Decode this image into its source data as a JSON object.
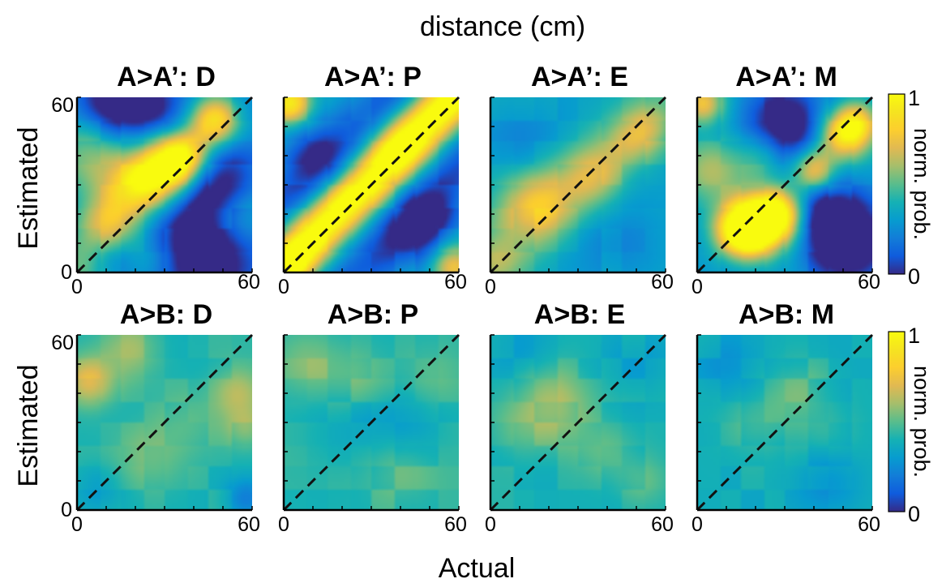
{
  "figure": {
    "top_label": "distance (cm)",
    "x_label": "Actual",
    "y_label": "Estimated"
  },
  "chart_data": [
    {
      "type": "heatmap",
      "title": "A>A’: D",
      "row": 0,
      "x_ticks": [
        "0",
        "60"
      ],
      "y_ticks": [
        "0",
        "60"
      ],
      "xlim": [
        0,
        60
      ],
      "ylim": [
        0,
        60
      ],
      "diagonal": "dashed",
      "seed": 11,
      "blobs": [
        [
          2,
          2,
          0.3,
          8
        ],
        [
          10,
          16,
          0.4,
          7
        ],
        [
          20,
          28,
          0.5,
          8
        ],
        [
          30,
          36,
          0.72,
          8
        ],
        [
          37,
          40,
          0.5,
          6
        ],
        [
          47,
          52,
          0.62,
          6
        ],
        [
          5,
          40,
          0.32,
          10
        ],
        [
          55,
          20,
          0.3,
          8
        ],
        [
          25,
          5,
          0.3,
          8
        ]
      ],
      "lows": [
        [
          40,
          8,
          0.5,
          14
        ],
        [
          50,
          30,
          0.35,
          9
        ],
        [
          25,
          55,
          0.35,
          10
        ],
        [
          10,
          58,
          0.3,
          8
        ],
        [
          12,
          5,
          0.2,
          6
        ]
      ],
      "base": 0.26
    },
    {
      "type": "heatmap",
      "title": "A>A’: P",
      "row": 0,
      "x_ticks": [
        "0",
        "60"
      ],
      "y_ticks": [
        "0",
        "60"
      ],
      "xlim": [
        0,
        60
      ],
      "ylim": [
        0,
        60
      ],
      "diagonal": "dashed",
      "seed": 23,
      "ridge": {
        "offset": 2,
        "width": 6,
        "amp": 0.75
      },
      "bands": {
        "offset": 25,
        "width": 7,
        "amp": -0.25
      },
      "blobs": [
        [
          2,
          58,
          0.55,
          5
        ],
        [
          58,
          2,
          0.45,
          5
        ],
        [
          40,
          44,
          0.15,
          6
        ],
        [
          5,
          5,
          0.15,
          5
        ]
      ],
      "lows": [
        [
          10,
          40,
          0.2,
          8
        ],
        [
          45,
          12,
          0.2,
          8
        ],
        [
          50,
          20,
          0.2,
          7
        ]
      ],
      "base": 0.36
    },
    {
      "type": "heatmap",
      "title": "A>A’: E",
      "row": 0,
      "x_ticks": [
        "0",
        "60"
      ],
      "y_ticks": [
        "0",
        "60"
      ],
      "xlim": [
        0,
        60
      ],
      "ylim": [
        0,
        60
      ],
      "diagonal": "dashed",
      "seed": 37,
      "ridge": {
        "offset": 0,
        "width": 8,
        "amp": 0.12
      },
      "blobs": [
        [
          12,
          22,
          0.25,
          8
        ],
        [
          20,
          26,
          0.2,
          8
        ],
        [
          35,
          33,
          0.26,
          7
        ],
        [
          48,
          45,
          0.22,
          6
        ],
        [
          55,
          50,
          0.18,
          5
        ],
        [
          2,
          5,
          0.15,
          6
        ]
      ],
      "lows": [
        [
          10,
          45,
          0.1,
          10
        ],
        [
          45,
          10,
          0.1,
          10
        ]
      ],
      "base": 0.34
    },
    {
      "type": "heatmap",
      "title": "A>A’: M",
      "row": 0,
      "x_ticks": [
        "0",
        "60"
      ],
      "y_ticks": [
        "0",
        "60"
      ],
      "xlim": [
        0,
        60
      ],
      "ylim": [
        0,
        60
      ],
      "diagonal": "dashed",
      "seed": 41,
      "blobs": [
        [
          20,
          16,
          0.9,
          7
        ],
        [
          14,
          14,
          0.5,
          6
        ],
        [
          28,
          20,
          0.6,
          6
        ],
        [
          40,
          35,
          0.5,
          5
        ],
        [
          50,
          47,
          0.6,
          6
        ],
        [
          55,
          52,
          0.4,
          5
        ],
        [
          2,
          58,
          0.5,
          5
        ],
        [
          5,
          35,
          0.3,
          8
        ],
        [
          22,
          40,
          0.25,
          6
        ]
      ],
      "lows": [
        [
          30,
          50,
          0.45,
          10
        ],
        [
          52,
          10,
          0.45,
          10
        ],
        [
          45,
          20,
          0.3,
          8
        ]
      ],
      "base": 0.3
    },
    {
      "type": "heatmap",
      "title": "A>B: D",
      "row": 1,
      "x_ticks": [
        "0",
        "60"
      ],
      "y_ticks": [
        "0",
        "60"
      ],
      "xlim": [
        0,
        60
      ],
      "ylim": [
        0,
        60
      ],
      "diagonal": "dashed",
      "seed": 53,
      "blobs": [
        [
          4,
          44,
          0.3,
          6
        ],
        [
          18,
          55,
          0.15,
          7
        ],
        [
          55,
          40,
          0.18,
          6
        ],
        [
          58,
          28,
          0.15,
          5
        ],
        [
          25,
          18,
          0.1,
          8
        ],
        [
          38,
          30,
          0.08,
          8
        ]
      ],
      "lows": [
        [
          58,
          4,
          0.2,
          5
        ],
        [
          8,
          8,
          0.1,
          6
        ]
      ],
      "base": 0.42
    },
    {
      "type": "heatmap",
      "title": "A>B: P",
      "row": 1,
      "x_ticks": [
        "0",
        "60"
      ],
      "y_ticks": [
        "0",
        "60"
      ],
      "xlim": [
        0,
        60
      ],
      "ylim": [
        0,
        60
      ],
      "diagonal": "dashed",
      "seed": 67,
      "blobs": [
        [
          8,
          50,
          0.12,
          8
        ],
        [
          25,
          45,
          0.1,
          8
        ],
        [
          50,
          45,
          0.08,
          8
        ],
        [
          40,
          15,
          0.1,
          8
        ]
      ],
      "lows": [
        [
          40,
          30,
          0.12,
          10
        ],
        [
          20,
          28,
          0.06,
          10
        ]
      ],
      "base": 0.43
    },
    {
      "type": "heatmap",
      "title": "A>B: E",
      "row": 1,
      "x_ticks": [
        "0",
        "60"
      ],
      "y_ticks": [
        "0",
        "60"
      ],
      "xlim": [
        0,
        60
      ],
      "ylim": [
        0,
        60
      ],
      "diagonal": "dashed",
      "seed": 79,
      "blobs": [
        [
          20,
          40,
          0.15,
          8
        ],
        [
          25,
          30,
          0.1,
          8
        ],
        [
          10,
          28,
          0.1,
          7
        ],
        [
          40,
          20,
          0.1,
          7
        ],
        [
          52,
          10,
          0.1,
          6
        ]
      ],
      "lows": [
        [
          10,
          55,
          0.08,
          8
        ],
        [
          50,
          50,
          0.08,
          8
        ]
      ],
      "base": 0.4
    },
    {
      "type": "heatmap",
      "title": "A>B: M",
      "row": 1,
      "x_ticks": [
        "0",
        "60"
      ],
      "y_ticks": [
        "0",
        "60"
      ],
      "xlim": [
        0,
        60
      ],
      "ylim": [
        0,
        60
      ],
      "diagonal": "dashed",
      "seed": 83,
      "blobs": [
        [
          20,
          30,
          0.1,
          8
        ],
        [
          35,
          40,
          0.12,
          8
        ],
        [
          45,
          25,
          0.08,
          7
        ]
      ],
      "lows": [
        [
          45,
          10,
          0.12,
          8
        ],
        [
          10,
          50,
          0.08,
          8
        ]
      ],
      "base": 0.38
    }
  ],
  "colorbars": [
    {
      "min_label": "0",
      "max_label": "1",
      "label": "norm. prob.",
      "colormap": "parula"
    },
    {
      "min_label": "0",
      "max_label": "1",
      "label": "norm. prob.",
      "colormap": "parula"
    }
  ]
}
